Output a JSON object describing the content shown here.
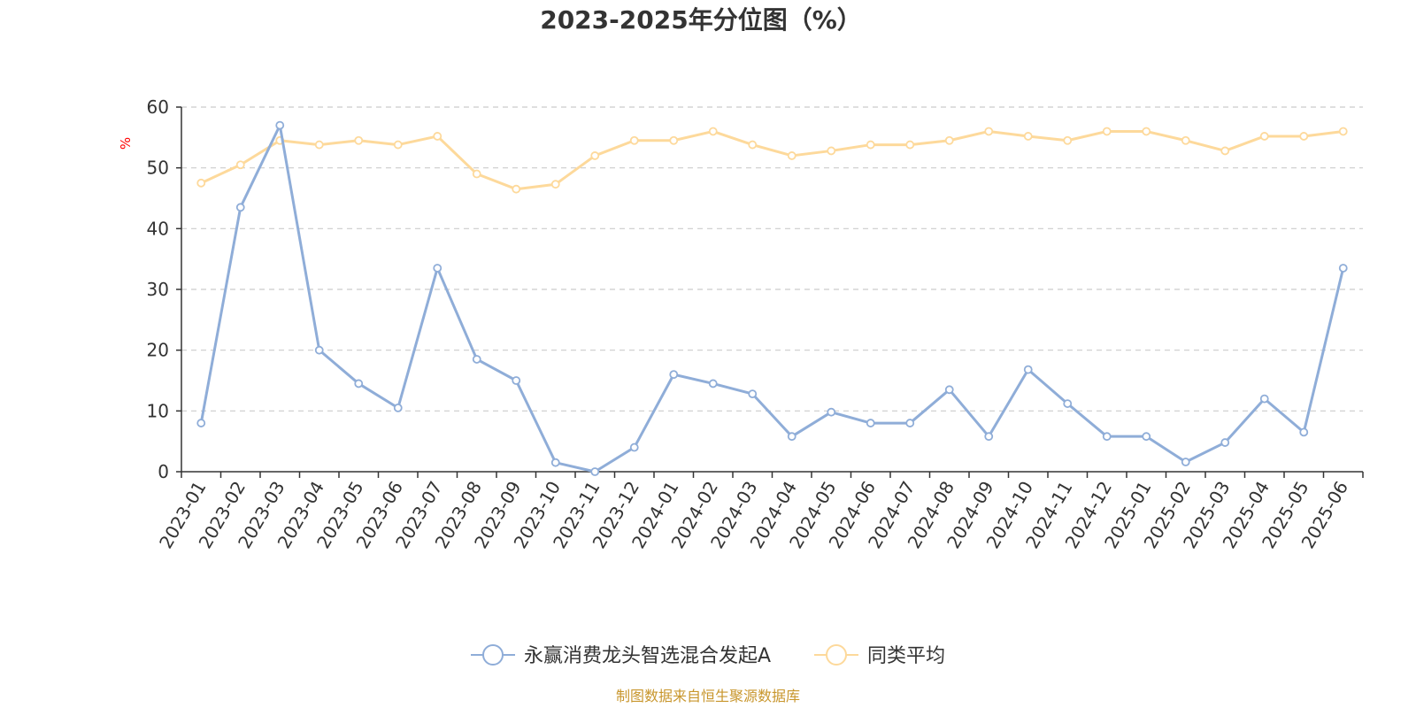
{
  "chart_data": {
    "type": "line",
    "title": "2023-2025年分位图（%）",
    "ylabel": "%",
    "ylim": [
      0,
      60
    ],
    "yticks": [
      "0",
      "10",
      "20",
      "30",
      "40",
      "50",
      "60"
    ],
    "grid": true,
    "legend_position": "bottom-center",
    "categories": [
      "2023-01",
      "2023-02",
      "2023-03",
      "2023-04",
      "2023-05",
      "2023-06",
      "2023-07",
      "2023-08",
      "2023-09",
      "2023-10",
      "2023-11",
      "2023-12",
      "2024-01",
      "2024-02",
      "2024-03",
      "2024-04",
      "2024-05",
      "2024-06",
      "2024-07",
      "2024-08",
      "2024-09",
      "2024-10",
      "2024-11",
      "2024-12",
      "2025-01",
      "2025-02",
      "2025-03",
      "2025-04",
      "2025-05",
      "2025-06"
    ],
    "series": [
      {
        "name": "永赢消费龙头智选混合发起A",
        "color": "#8fadd8",
        "values": [
          8,
          43.5,
          57,
          20,
          14.5,
          10.5,
          33.5,
          18.5,
          15,
          1.5,
          0,
          4,
          16,
          14.5,
          12.8,
          5.8,
          9.8,
          8,
          8,
          13.5,
          5.8,
          16.8,
          11.2,
          5.8,
          5.8,
          1.6,
          4.8,
          12,
          6.5,
          33.5
        ]
      },
      {
        "name": "同类平均",
        "color": "#fdd99b",
        "values": [
          47.5,
          50.5,
          54.5,
          53.8,
          54.5,
          53.8,
          55.2,
          49,
          46.5,
          47.3,
          52,
          54.5,
          54.5,
          56,
          53.8,
          52,
          52.8,
          53.8,
          53.8,
          54.5,
          56,
          55.2,
          54.5,
          56,
          56,
          54.5,
          52.8,
          55.2,
          55.2,
          56
        ]
      }
    ],
    "ylabel_color": "#ff0000",
    "title_color": "#333333",
    "axis_color": "#333333",
    "grid_color": "#cccccc"
  },
  "source": {
    "text": "制图数据来自恒生聚源数据库",
    "color": "#c8962c"
  }
}
